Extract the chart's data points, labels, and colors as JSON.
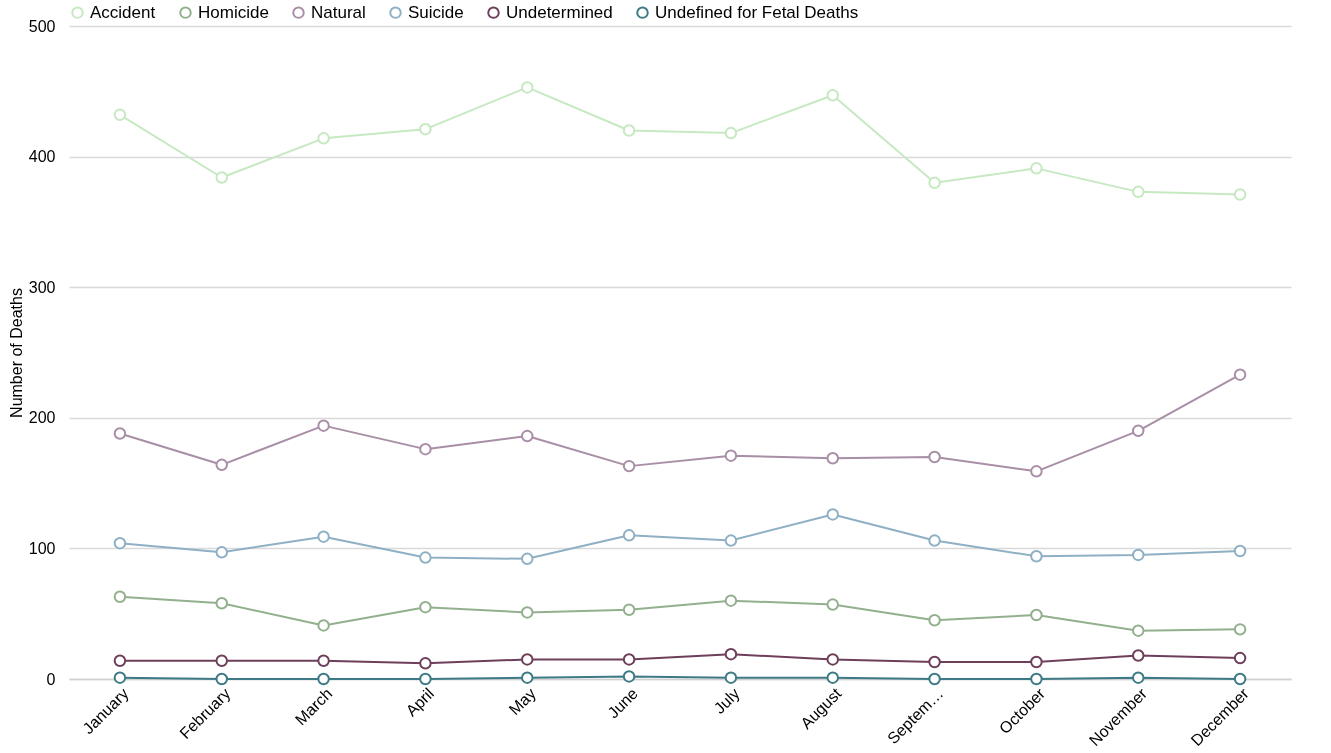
{
  "chart_data": {
    "type": "line",
    "ylabel": "Number of Deaths",
    "categories": [
      "January",
      "February",
      "March",
      "April",
      "May",
      "June",
      "July",
      "August",
      "Septem…",
      "October",
      "November",
      "December"
    ],
    "ylim": [
      0,
      500
    ],
    "yticks": [
      0,
      100,
      200,
      300,
      400,
      500
    ],
    "grid": "y",
    "legend": "top",
    "marker": "circle",
    "line_style": "solid",
    "series": [
      {
        "name": "Accident",
        "color": "#c6e9c2",
        "values": [
          432,
          384,
          414,
          421,
          453,
          420,
          418,
          447,
          380,
          391,
          373,
          371
        ]
      },
      {
        "name": "Homicide",
        "color": "#93b08e",
        "values": [
          63,
          58,
          41,
          55,
          51,
          53,
          60,
          57,
          45,
          49,
          37,
          38
        ]
      },
      {
        "name": "Natural",
        "color": "#a88fa6",
        "values": [
          188,
          164,
          194,
          176,
          186,
          163,
          171,
          169,
          170,
          159,
          190,
          233
        ]
      },
      {
        "name": "Suicide",
        "color": "#8fb0c4",
        "values": [
          104,
          97,
          109,
          93,
          92,
          110,
          106,
          126,
          106,
          94,
          95,
          98
        ]
      },
      {
        "name": "Undetermined",
        "color": "#6e3f5a",
        "values": [
          14,
          14,
          14,
          12,
          15,
          15,
          19,
          15,
          13,
          13,
          18,
          16
        ]
      },
      {
        "name": "Undefined for Fetal Deaths",
        "color": "#3d7a85",
        "values": [
          1,
          0,
          0,
          0,
          1,
          2,
          1,
          1,
          0,
          0,
          1,
          0
        ]
      }
    ]
  }
}
